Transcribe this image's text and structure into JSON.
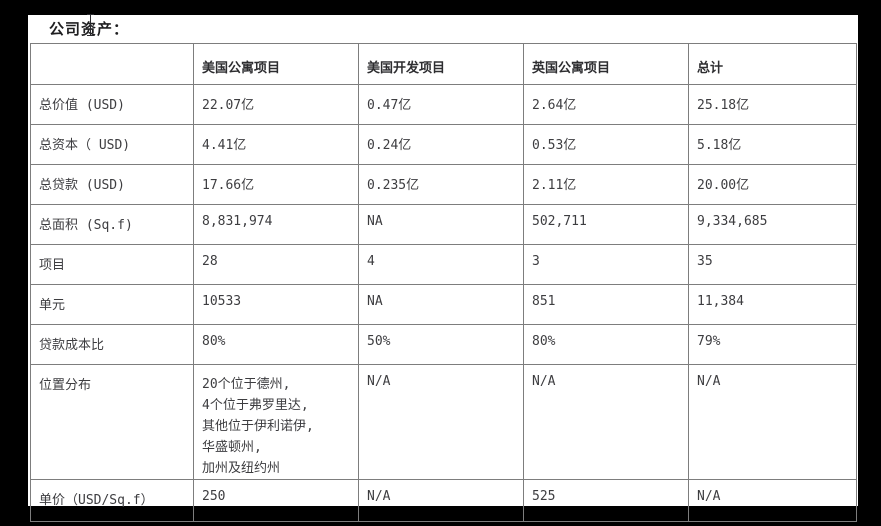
{
  "page": {
    "background_color": "#000000",
    "panel_color": "#ffffff",
    "border_color": "#7d7d7d",
    "text_color": "#3d3d40"
  },
  "title": "公司资产：",
  "table": {
    "columns": [
      "",
      "美国公寓项目",
      "美国开发项目",
      "英国公寓项目",
      "总计"
    ],
    "rows": [
      {
        "label": "总价值 (USD)",
        "values": [
          "22.07亿",
          "0.47亿",
          "2.64亿",
          "25.18亿"
        ]
      },
      {
        "label": "总资本（ USD)",
        "values": [
          "4.41亿",
          "0.24亿",
          "0.53亿",
          "5.18亿"
        ]
      },
      {
        "label": "总贷款 (USD)",
        "values": [
          "17.66亿",
          "0.235亿",
          "2.11亿",
          "20.00亿"
        ]
      },
      {
        "label": "总面积 (Sq.f)",
        "values": [
          "8,831,974",
          "NA",
          "502,711",
          "9,334,685"
        ]
      },
      {
        "label": "项目",
        "values": [
          "28",
          "4",
          "3",
          "35"
        ]
      },
      {
        "label": "单元",
        "values": [
          "10533",
          "NA",
          "851",
          "11,384"
        ]
      },
      {
        "label": "贷款成本比",
        "values": [
          "80%",
          "50%",
          "80%",
          "79%"
        ]
      },
      {
        "label": "位置分布",
        "values": [
          "20个位于德州,\n4个位于弗罗里达,\n其他位于伊利诺伊,\n华盛顿州,\n加州及纽约州",
          "N/A",
          "N/A",
          "N/A"
        ]
      },
      {
        "label": "单价（USD/Sq.f）",
        "values": [
          "250",
          "N/A",
          "525",
          "N/A"
        ]
      }
    ]
  }
}
